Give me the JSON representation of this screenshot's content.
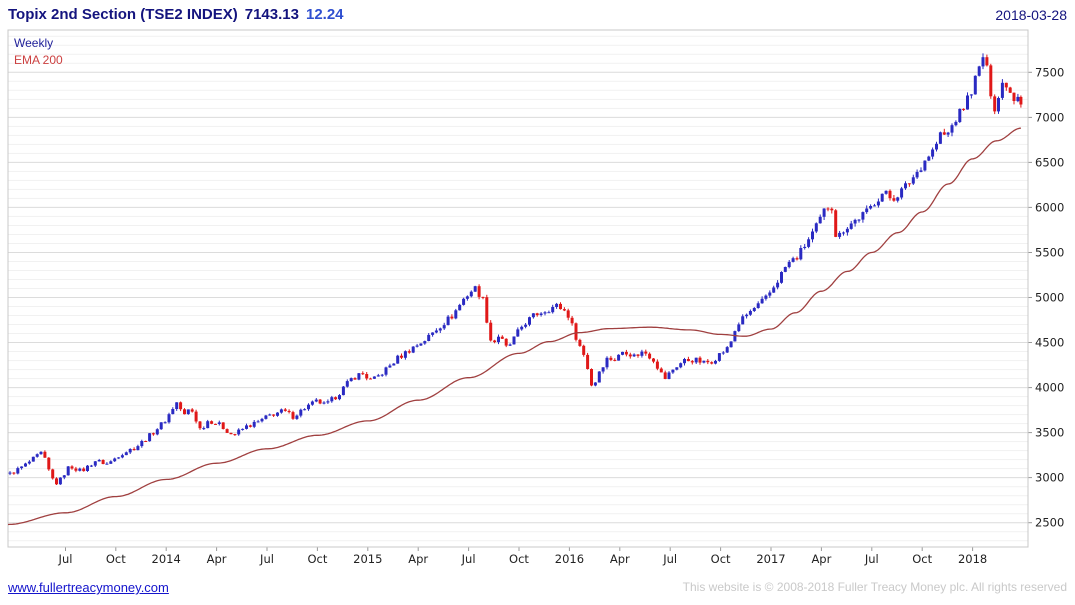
{
  "header": {
    "title": "Topix 2nd Section (TSE2 INDEX)",
    "last_price": "7143.13",
    "change": "12.24",
    "date": "2018-03-28"
  },
  "legend": {
    "series": "Weekly",
    "overlay": "EMA 200"
  },
  "footer": {
    "link": "www.fullertreacymoney.com",
    "copyright": "This website is © 2008-2018 Fuller Treacy Money plc. All rights reserved"
  },
  "colors": {
    "title": "#14147e",
    "change": "#2f4fd0",
    "legend_weekly": "#22229a",
    "legend_ema": "#cc4040",
    "up": "#2a2ac2",
    "down": "#e01818",
    "ema": "#a04040",
    "grid_major": "#dcdcdc",
    "grid_minor": "#f1f1f1",
    "border": "#c8c8c8",
    "tick": "#999999",
    "axis_text": "#222222",
    "link": "#1414cc",
    "copyright": "#c9c9c9"
  },
  "chart_data": {
    "type": "candlestick",
    "frequency": "weekly",
    "title": "Topix 2nd Section (TSE2 INDEX)",
    "last_close": 7143.13,
    "change": 12.24,
    "date": "2018-03-28",
    "overlay": "EMA 200",
    "xlim": [
      2013.215,
      2018.275
    ],
    "ylim": [
      2230,
      7970
    ],
    "y_ticks": [
      2500,
      3000,
      3500,
      4000,
      4500,
      5000,
      5500,
      6000,
      6500,
      7000,
      7500
    ],
    "x_ticks": [
      {
        "t": 2013.5,
        "label": "Jul"
      },
      {
        "t": 2013.75,
        "label": "Oct"
      },
      {
        "t": 2014.0,
        "label": "2014"
      },
      {
        "t": 2014.25,
        "label": "Apr"
      },
      {
        "t": 2014.5,
        "label": "Jul"
      },
      {
        "t": 2014.75,
        "label": "Oct"
      },
      {
        "t": 2015.0,
        "label": "2015"
      },
      {
        "t": 2015.25,
        "label": "Apr"
      },
      {
        "t": 2015.5,
        "label": "Jul"
      },
      {
        "t": 2015.75,
        "label": "Oct"
      },
      {
        "t": 2016.0,
        "label": "2016"
      },
      {
        "t": 2016.25,
        "label": "Apr"
      },
      {
        "t": 2016.5,
        "label": "Jul"
      },
      {
        "t": 2016.75,
        "label": "Oct"
      },
      {
        "t": 2017.0,
        "label": "2017"
      },
      {
        "t": 2017.25,
        "label": "Apr"
      },
      {
        "t": 2017.5,
        "label": "Jul"
      },
      {
        "t": 2017.75,
        "label": "Oct"
      },
      {
        "t": 2018.0,
        "label": "2018"
      }
    ],
    "close_keypoints": [
      [
        2013.225,
        3040
      ],
      [
        2013.3,
        3140
      ],
      [
        2013.385,
        3280
      ],
      [
        2013.43,
        3000
      ],
      [
        2013.46,
        2930
      ],
      [
        2013.52,
        3130
      ],
      [
        2013.58,
        3070
      ],
      [
        2013.65,
        3190
      ],
      [
        2013.71,
        3150
      ],
      [
        2013.77,
        3260
      ],
      [
        2013.85,
        3340
      ],
      [
        2013.93,
        3490
      ],
      [
        2014.0,
        3650
      ],
      [
        2014.05,
        3840
      ],
      [
        2014.09,
        3690
      ],
      [
        2014.12,
        3780
      ],
      [
        2014.17,
        3530
      ],
      [
        2014.21,
        3640
      ],
      [
        2014.27,
        3580
      ],
      [
        2014.33,
        3470
      ],
      [
        2014.4,
        3570
      ],
      [
        2014.46,
        3620
      ],
      [
        2014.52,
        3700
      ],
      [
        2014.58,
        3740
      ],
      [
        2014.63,
        3680
      ],
      [
        2014.69,
        3780
      ],
      [
        2014.75,
        3850
      ],
      [
        2014.79,
        3800
      ],
      [
        2014.85,
        3920
      ],
      [
        2014.92,
        4100
      ],
      [
        2014.97,
        4160
      ],
      [
        2015.02,
        4070
      ],
      [
        2015.08,
        4180
      ],
      [
        2015.15,
        4330
      ],
      [
        2015.22,
        4440
      ],
      [
        2015.29,
        4540
      ],
      [
        2015.35,
        4670
      ],
      [
        2015.42,
        4800
      ],
      [
        2015.48,
        5000
      ],
      [
        2015.53,
        5110
      ],
      [
        2015.57,
        4990
      ],
      [
        2015.615,
        4470
      ],
      [
        2015.65,
        4580
      ],
      [
        2015.69,
        4430
      ],
      [
        2015.73,
        4560
      ],
      [
        2015.77,
        4700
      ],
      [
        2015.83,
        4810
      ],
      [
        2015.88,
        4860
      ],
      [
        2015.94,
        4910
      ],
      [
        2015.99,
        4830
      ],
      [
        2016.04,
        4520
      ],
      [
        2016.08,
        4320
      ],
      [
        2016.115,
        3980
      ],
      [
        2016.15,
        4200
      ],
      [
        2016.19,
        4330
      ],
      [
        2016.23,
        4310
      ],
      [
        2016.27,
        4420
      ],
      [
        2016.32,
        4350
      ],
      [
        2016.37,
        4400
      ],
      [
        2016.42,
        4310
      ],
      [
        2016.47,
        4090
      ],
      [
        2016.52,
        4220
      ],
      [
        2016.57,
        4300
      ],
      [
        2016.62,
        4310
      ],
      [
        2016.67,
        4270
      ],
      [
        2016.71,
        4300
      ],
      [
        2016.75,
        4380
      ],
      [
        2016.79,
        4440
      ],
      [
        2016.83,
        4690
      ],
      [
        2016.88,
        4810
      ],
      [
        2016.93,
        4900
      ],
      [
        2016.98,
        5000
      ],
      [
        2017.03,
        5180
      ],
      [
        2017.08,
        5370
      ],
      [
        2017.13,
        5450
      ],
      [
        2017.18,
        5620
      ],
      [
        2017.23,
        5800
      ],
      [
        2017.27,
        5990
      ],
      [
        2017.3,
        6040
      ],
      [
        2017.325,
        5640
      ],
      [
        2017.36,
        5760
      ],
      [
        2017.42,
        5860
      ],
      [
        2017.48,
        5960
      ],
      [
        2017.52,
        6080
      ],
      [
        2017.56,
        6170
      ],
      [
        2017.6,
        6090
      ],
      [
        2017.65,
        6190
      ],
      [
        2017.69,
        6290
      ],
      [
        2017.73,
        6410
      ],
      [
        2017.77,
        6550
      ],
      [
        2017.81,
        6650
      ],
      [
        2017.845,
        6830
      ],
      [
        2017.87,
        6780
      ],
      [
        2017.91,
        6960
      ],
      [
        2017.95,
        7090
      ],
      [
        2017.99,
        7280
      ],
      [
        2018.03,
        7520
      ],
      [
        2018.055,
        7700
      ],
      [
        2018.08,
        7420
      ],
      [
        2018.105,
        7090
      ],
      [
        2018.13,
        7230
      ],
      [
        2018.155,
        7430
      ],
      [
        2018.18,
        7330
      ],
      [
        2018.2,
        7190
      ],
      [
        2018.22,
        7300
      ],
      [
        2018.24,
        7143.13
      ]
    ],
    "ema200_keypoints": [
      [
        2013.215,
        2480
      ],
      [
        2013.5,
        2610
      ],
      [
        2013.75,
        2790
      ],
      [
        2014.0,
        2980
      ],
      [
        2014.25,
        3160
      ],
      [
        2014.5,
        3320
      ],
      [
        2014.75,
        3470
      ],
      [
        2015.0,
        3630
      ],
      [
        2015.25,
        3860
      ],
      [
        2015.5,
        4110
      ],
      [
        2015.75,
        4380
      ],
      [
        2015.9,
        4510
      ],
      [
        2016.05,
        4610
      ],
      [
        2016.2,
        4655
      ],
      [
        2016.4,
        4670
      ],
      [
        2016.6,
        4640
      ],
      [
        2016.75,
        4590
      ],
      [
        2016.87,
        4570
      ],
      [
        2017.0,
        4650
      ],
      [
        2017.12,
        4830
      ],
      [
        2017.25,
        5070
      ],
      [
        2017.38,
        5290
      ],
      [
        2017.5,
        5500
      ],
      [
        2017.63,
        5720
      ],
      [
        2017.75,
        5950
      ],
      [
        2017.88,
        6260
      ],
      [
        2018.0,
        6540
      ],
      [
        2018.12,
        6740
      ],
      [
        2018.24,
        6880
      ]
    ]
  }
}
